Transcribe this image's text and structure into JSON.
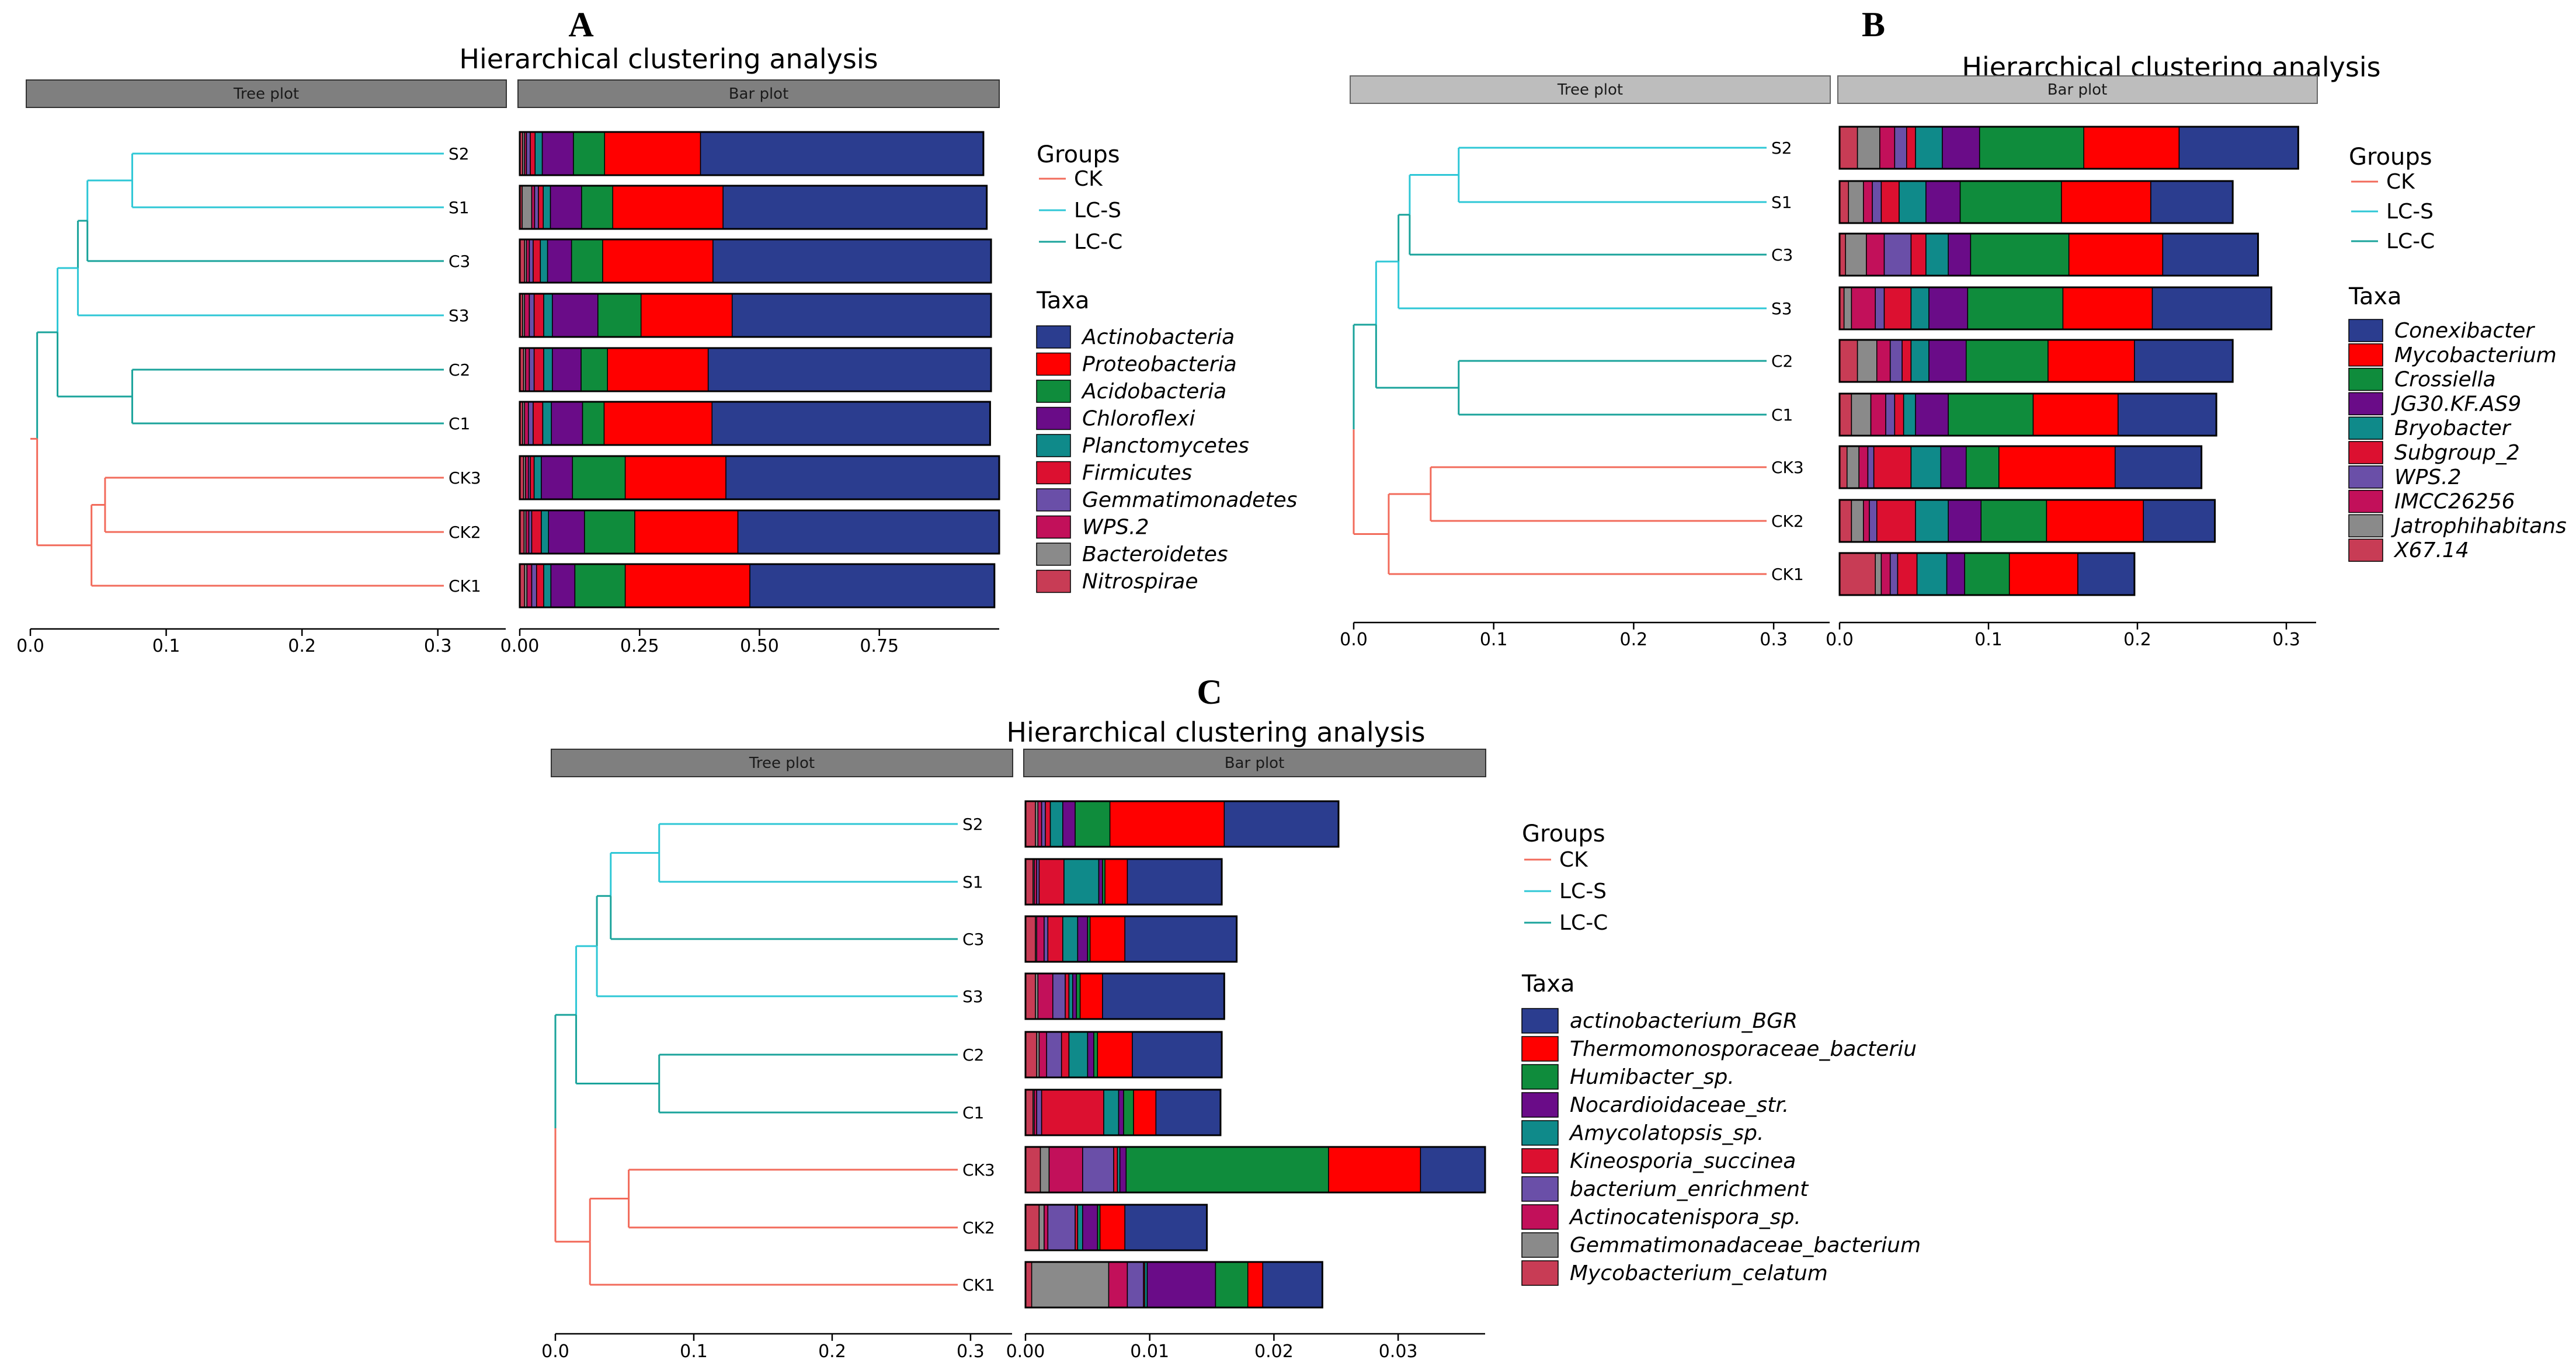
{
  "figure": {
    "panels_meta": [
      {
        "letter": "A",
        "title": "Hierarchical clustering analysis",
        "tree_strip": "Tree plot",
        "bar_strip": "Bar plot"
      },
      {
        "letter": "B",
        "title": "Hierarchical clustering analysis",
        "tree_strip": "Tree plot",
        "bar_strip": "Bar plot"
      },
      {
        "letter": "C",
        "title": "Hierarchical clustering analysis",
        "tree_strip": "Tree plot",
        "bar_strip": "Bar plot"
      }
    ]
  },
  "colors": {
    "CK": "#f26b5b",
    "LC-S": "#2ec7d6",
    "LC-C": "#1aa39b",
    "taxa": [
      "#2b3d8f",
      "#ff0000",
      "#0f8c3c",
      "#6a0c88",
      "#0f8a8a",
      "#dc1030",
      "#6a4fa8",
      "#c2105a",
      "#8a8a8a",
      "#c83c55"
    ]
  },
  "chart_data": [
    {
      "type": "bar",
      "subtype": "hierarchical-clustering-stacked-bar",
      "panel": "A",
      "title": "Hierarchical clustering analysis",
      "groups_title": "Groups",
      "groups": [
        "CK",
        "LC-S",
        "LC-C"
      ],
      "taxa_title": "Taxa",
      "taxa": [
        "Actinobacteria",
        "Proteobacteria",
        "Acidobacteria",
        "Chloroflexi",
        "Planctomycetes",
        "Firmicutes",
        "Gemmatimonadetes",
        "WPS.2",
        "Bacteroidetes",
        "Nitrospirae"
      ],
      "samples": [
        "S2",
        "S1",
        "C3",
        "S3",
        "C2",
        "C1",
        "CK3",
        "CK2",
        "CK1"
      ],
      "sample_groups": [
        "LC-S",
        "LC-S",
        "LC-C",
        "LC-S",
        "LC-C",
        "LC-C",
        "CK",
        "CK",
        "CK"
      ],
      "tree_xlim": [
        0,
        0.35
      ],
      "tree_ticks": [
        "0.0",
        "0.1",
        "0.2",
        "0.3"
      ],
      "tree": {
        "root": {
          "height": 0.005,
          "group": "CK",
          "children": [
            {
              "height": 0.045,
              "group": "CK",
              "children": [
                {
                  "height": 0.055,
                  "group": "CK",
                  "children": [
                    {
                      "leaf": "CK3"
                    },
                    {
                      "leaf": "CK2"
                    }
                  ]
                },
                {
                  "leaf": "CK1"
                }
              ]
            },
            {
              "height": 0.02,
              "group": "LC-C",
              "children": [
                {
                  "height": 0.035,
                  "group": "LC-S",
                  "children": [
                    {
                      "height": 0.042,
                      "group": "LC-C",
                      "children": [
                        {
                          "height": 0.075,
                          "group": "LC-S",
                          "children": [
                            {
                              "leaf": "S2"
                            },
                            {
                              "leaf": "S1"
                            }
                          ]
                        },
                        {
                          "leaf": "C3"
                        }
                      ]
                    },
                    {
                      "leaf": "S3"
                    }
                  ]
                },
                {
                  "height": 0.075,
                  "group": "LC-C",
                  "children": [
                    {
                      "leaf": "C2"
                    },
                    {
                      "leaf": "C1"
                    }
                  ]
                }
              ]
            }
          ]
        }
      },
      "bar_xlim": [
        0,
        1.0
      ],
      "bar_ticks": [
        0,
        0.25,
        0.5,
        0.75
      ],
      "bar_tick_labels": [
        "0.00",
        "0.25",
        "0.50",
        "0.75"
      ],
      "values": {
        "S2": [
          0.59,
          0.2,
          0.065,
          0.065,
          0.015,
          0.01,
          0.008,
          0.004,
          0.004,
          0.006
        ],
        "S1": [
          0.55,
          0.23,
          0.065,
          0.065,
          0.015,
          0.01,
          0.008,
          0.006,
          0.02,
          0.005
        ],
        "C3": [
          0.58,
          0.23,
          0.065,
          0.05,
          0.015,
          0.015,
          0.008,
          0.006,
          0.004,
          0.01
        ],
        "S3": [
          0.54,
          0.19,
          0.09,
          0.095,
          0.018,
          0.02,
          0.01,
          0.01,
          0.004,
          0.006
        ],
        "C2": [
          0.59,
          0.21,
          0.055,
          0.06,
          0.018,
          0.02,
          0.01,
          0.008,
          0.004,
          0.008
        ],
        "C1": [
          0.58,
          0.225,
          0.045,
          0.065,
          0.018,
          0.02,
          0.01,
          0.008,
          0.004,
          0.006
        ],
        "CK3": [
          0.57,
          0.21,
          0.11,
          0.065,
          0.015,
          0.008,
          0.004,
          0.006,
          0.004,
          0.008
        ],
        "CK2": [
          0.545,
          0.215,
          0.105,
          0.075,
          0.015,
          0.02,
          0.006,
          0.006,
          0.004,
          0.009
        ],
        "CK1": [
          0.51,
          0.26,
          0.105,
          0.05,
          0.015,
          0.015,
          0.01,
          0.01,
          0.005,
          0.01
        ]
      }
    },
    {
      "type": "bar",
      "subtype": "hierarchical-clustering-stacked-bar",
      "panel": "B",
      "title": "Hierarchical clustering analysis",
      "groups_title": "Groups",
      "groups": [
        "CK",
        "LC-S",
        "LC-C"
      ],
      "taxa_title": "Taxa",
      "taxa": [
        "Conexibacter",
        "Mycobacterium",
        "Crossiella",
        "JG30.KF.AS9",
        "Bryobacter",
        "Subgroup_2",
        "WPS.2",
        "IMCC26256",
        "Jatrophihabitans",
        "X67.14"
      ],
      "samples": [
        "S2",
        "S1",
        "C3",
        "S3",
        "C2",
        "C1",
        "CK3",
        "CK2",
        "CK1"
      ],
      "sample_groups": [
        "LC-S",
        "LC-S",
        "LC-C",
        "LC-S",
        "LC-C",
        "LC-C",
        "CK",
        "CK",
        "CK"
      ],
      "tree_xlim": [
        0,
        0.34
      ],
      "tree_ticks": [
        "0.0",
        "0.1",
        "0.2",
        "0.3"
      ],
      "tree": {
        "root": {
          "height": 0.0,
          "group": "CK",
          "children": [
            {
              "height": 0.025,
              "group": "CK",
              "children": [
                {
                  "height": 0.055,
                  "group": "CK",
                  "children": [
                    {
                      "leaf": "CK3"
                    },
                    {
                      "leaf": "CK2"
                    }
                  ]
                },
                {
                  "leaf": "CK1"
                }
              ]
            },
            {
              "height": 0.016,
              "group": "LC-C",
              "children": [
                {
                  "height": 0.032,
                  "group": "LC-S",
                  "children": [
                    {
                      "height": 0.04,
                      "group": "LC-C",
                      "children": [
                        {
                          "height": 0.075,
                          "group": "LC-S",
                          "children": [
                            {
                              "leaf": "S2"
                            },
                            {
                              "leaf": "S1"
                            }
                          ]
                        },
                        {
                          "leaf": "C3"
                        }
                      ]
                    },
                    {
                      "leaf": "S3"
                    }
                  ]
                },
                {
                  "height": 0.075,
                  "group": "LC-C",
                  "children": [
                    {
                      "leaf": "C2"
                    },
                    {
                      "leaf": "C1"
                    }
                  ]
                }
              ]
            }
          ]
        }
      },
      "bar_xlim": [
        0,
        0.32
      ],
      "bar_ticks": [
        0,
        0.1,
        0.2,
        0.3
      ],
      "bar_tick_labels": [
        "0.0",
        "0.1",
        "0.2",
        "0.3"
      ],
      "values": {
        "S2": [
          0.08,
          0.064,
          0.07,
          0.025,
          0.018,
          0.006,
          0.008,
          0.01,
          0.015,
          0.012
        ],
        "S1": [
          0.055,
          0.06,
          0.068,
          0.023,
          0.018,
          0.012,
          0.006,
          0.006,
          0.01,
          0.006
        ],
        "C3": [
          0.064,
          0.063,
          0.066,
          0.015,
          0.015,
          0.01,
          0.018,
          0.012,
          0.014,
          0.004
        ],
        "S3": [
          0.08,
          0.06,
          0.064,
          0.026,
          0.012,
          0.018,
          0.006,
          0.016,
          0.005,
          0.003
        ],
        "C2": [
          0.066,
          0.058,
          0.055,
          0.025,
          0.012,
          0.006,
          0.008,
          0.009,
          0.013,
          0.012
        ],
        "C1": [
          0.066,
          0.057,
          0.057,
          0.022,
          0.008,
          0.006,
          0.006,
          0.01,
          0.013,
          0.008
        ],
        "CK3": [
          0.058,
          0.078,
          0.022,
          0.017,
          0.02,
          0.025,
          0.004,
          0.006,
          0.008,
          0.005
        ],
        "CK2": [
          0.048,
          0.065,
          0.044,
          0.022,
          0.022,
          0.026,
          0.005,
          0.004,
          0.008,
          0.008
        ],
        "CK1": [
          0.038,
          0.046,
          0.03,
          0.012,
          0.02,
          0.013,
          0.005,
          0.006,
          0.004,
          0.024
        ]
      }
    },
    {
      "type": "bar",
      "subtype": "hierarchical-clustering-stacked-bar",
      "panel": "C",
      "title": "Hierarchical clustering analysis",
      "groups_title": "Groups",
      "groups": [
        "CK",
        "LC-S",
        "LC-C"
      ],
      "taxa_title": "Taxa",
      "taxa": [
        "actinobacterium_BGR",
        "Thermomonosporaceae_bacteriu",
        "Humibacter_sp.",
        "Nocardioidaceae_str.",
        "Amycolatopsis_sp.",
        "Kineosporia_succinea",
        "bacterium_enrichment",
        "Actinocatenispora_sp.",
        "Gemmatimonadaceae_bacterium",
        "Mycobacterium_celatum"
      ],
      "samples": [
        "S2",
        "S1",
        "C3",
        "S3",
        "C2",
        "C1",
        "CK3",
        "CK2",
        "CK1"
      ],
      "sample_groups": [
        "LC-S",
        "LC-S",
        "LC-C",
        "LC-S",
        "LC-C",
        "LC-C",
        "CK",
        "CK",
        "CK"
      ],
      "tree_xlim": [
        0,
        0.33
      ],
      "tree_ticks": [
        "0.0",
        "0.1",
        "0.2",
        "0.3"
      ],
      "tree": {
        "root": {
          "height": 0.0,
          "group": "CK",
          "children": [
            {
              "height": 0.025,
              "group": "CK",
              "children": [
                {
                  "height": 0.053,
                  "group": "CK",
                  "children": [
                    {
                      "leaf": "CK3"
                    },
                    {
                      "leaf": "CK2"
                    }
                  ]
                },
                {
                  "leaf": "CK1"
                }
              ]
            },
            {
              "height": 0.015,
              "group": "LC-C",
              "children": [
                {
                  "height": 0.03,
                  "group": "LC-S",
                  "children": [
                    {
                      "height": 0.04,
                      "group": "LC-C",
                      "children": [
                        {
                          "height": 0.075,
                          "group": "LC-S",
                          "children": [
                            {
                              "leaf": "S2"
                            },
                            {
                              "leaf": "S1"
                            }
                          ]
                        },
                        {
                          "leaf": "C3"
                        }
                      ]
                    },
                    {
                      "leaf": "S3"
                    }
                  ]
                },
                {
                  "height": 0.075,
                  "group": "LC-C",
                  "children": [
                    {
                      "leaf": "C2"
                    },
                    {
                      "leaf": "C1"
                    }
                  ]
                }
              ]
            }
          ]
        }
      },
      "bar_xlim": [
        0,
        0.037
      ],
      "bar_ticks": [
        0,
        0.01,
        0.02,
        0.03
      ],
      "bar_tick_labels": [
        "0.00",
        "0.01",
        "0.02",
        "0.03"
      ],
      "values": {
        "S2": [
          0.0092,
          0.0092,
          0.0028,
          0.001,
          0.001,
          0.0004,
          0.0003,
          0.0003,
          0.0002,
          0.0008
        ],
        "S1": [
          0.0076,
          0.0018,
          0.0002,
          0.0003,
          0.0028,
          0.002,
          0.0002,
          0.0002,
          0.0001,
          0.0006
        ],
        "C3": [
          0.009,
          0.0028,
          0.0002,
          0.0008,
          0.0012,
          0.0012,
          0.0003,
          0.0006,
          0.0001,
          0.0008
        ],
        "S3": [
          0.0098,
          0.0018,
          0.0003,
          0.0003,
          0.0003,
          0.0003,
          0.001,
          0.0012,
          0.0002,
          0.0008
        ],
        "C2": [
          0.0072,
          0.0028,
          0.0003,
          0.0005,
          0.0015,
          0.0006,
          0.0012,
          0.0006,
          0.0002,
          0.0009
        ],
        "C1": [
          0.0052,
          0.0018,
          0.0008,
          0.0004,
          0.0012,
          0.005,
          0.0004,
          0.0002,
          0.0001,
          0.0006
        ],
        "CK3": [
          0.0052,
          0.0074,
          0.0163,
          0.0005,
          0.0002,
          0.0003,
          0.0025,
          0.0027,
          0.0007,
          0.0012
        ],
        "CK2": [
          0.0066,
          0.002,
          0.0002,
          0.0012,
          0.0004,
          0.0002,
          0.0022,
          0.0003,
          0.0004,
          0.0011
        ],
        "CK1": [
          0.0048,
          0.0012,
          0.0026,
          0.0055,
          0.0002,
          0.0001,
          0.0013,
          0.0015,
          0.0062,
          0.0005
        ]
      }
    }
  ]
}
